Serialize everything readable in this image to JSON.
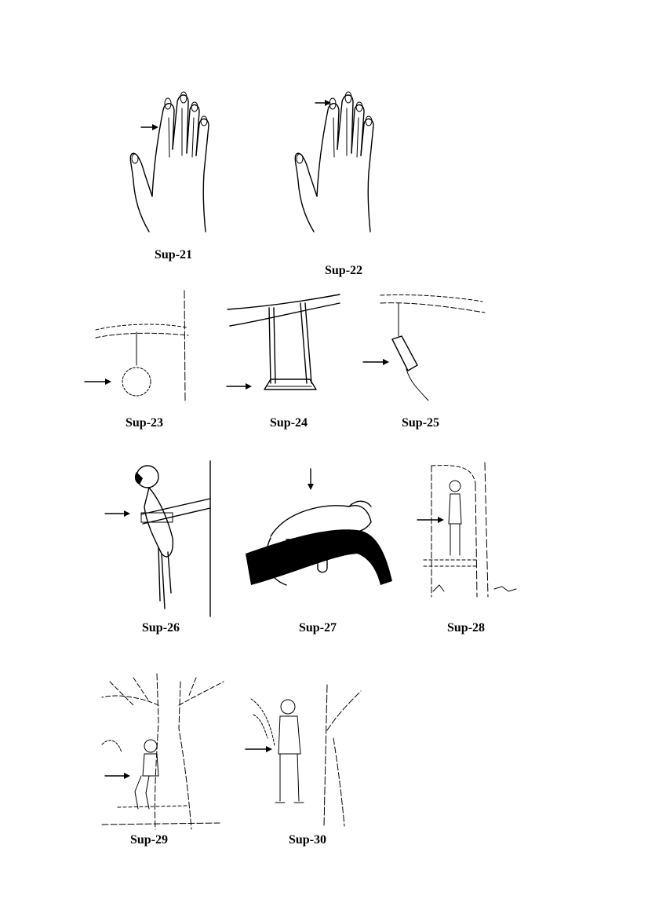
{
  "figures": [
    {
      "id": "sup21",
      "label": "Sup-21",
      "icon": "hand-arrow-ring-finger"
    },
    {
      "id": "sup22",
      "label": "Sup-22",
      "icon": "hand-arrow-middle-finger"
    },
    {
      "id": "sup23",
      "label": "Sup-23",
      "icon": "ring-hanging-from-branch"
    },
    {
      "id": "sup24",
      "label": "Sup-24",
      "icon": "swing-hanging-from-branch"
    },
    {
      "id": "sup25",
      "label": "Sup-25",
      "icon": "bag-hanging-from-branch"
    },
    {
      "id": "sup26",
      "label": "Sup-26",
      "icon": "parrot-on-perch"
    },
    {
      "id": "sup27",
      "label": "Sup-27",
      "icon": "leopard-on-branch"
    },
    {
      "id": "sup28",
      "label": "Sup-28",
      "icon": "man-standing-by-tree"
    },
    {
      "id": "sup29",
      "label": "Sup-29",
      "icon": "boy-sitting-in-tree"
    },
    {
      "id": "sup30",
      "label": "Sup-30",
      "icon": "man-standing-by-tree-2"
    }
  ]
}
